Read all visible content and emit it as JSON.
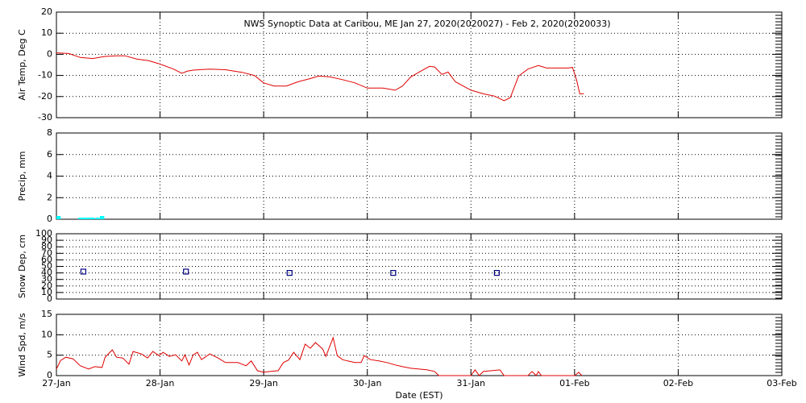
{
  "chart_data": [
    {
      "type": "line",
      "title": "NWS Synoptic Data at Caribou, ME   Jan 27, 2020(2020027) - Feb  2, 2020(2020033)",
      "ylabel": "Air Temp, Deg C",
      "xlim": [
        0,
        7
      ],
      "xticks": [
        0,
        1,
        2,
        3,
        4,
        5,
        6,
        7
      ],
      "ylim": [
        -30,
        20
      ],
      "yticks": [
        -30,
        -20,
        -10,
        0,
        10,
        20
      ],
      "grid": true,
      "series": [
        {
          "name": "Air Temp",
          "color": "#e00000",
          "x": [
            0,
            0.12,
            0.23,
            0.35,
            0.47,
            0.58,
            0.66,
            0.78,
            0.89,
            1.0,
            1.13,
            1.21,
            1.26,
            1.32,
            1.48,
            1.63,
            1.79,
            1.91,
            2.0,
            2.1,
            2.22,
            2.33,
            2.45,
            2.53,
            2.64,
            2.76,
            2.88,
            3.0,
            3.15,
            3.27,
            3.34,
            3.42,
            3.5,
            3.6,
            3.65,
            3.72,
            3.78,
            3.85,
            4.0,
            4.12,
            4.23,
            4.32,
            4.38,
            4.46,
            4.55,
            4.65,
            4.73,
            4.94,
            4.98,
            5.02,
            5.05,
            5.09
          ],
          "values": [
            0.7,
            0.4,
            -1.5,
            -2,
            -1,
            -0.7,
            -0.7,
            -2.3,
            -3,
            -4.6,
            -7,
            -9,
            -8,
            -7.5,
            -7,
            -7.3,
            -8.5,
            -10,
            -13.5,
            -15,
            -15,
            -13,
            -11.5,
            -10.3,
            -10.7,
            -12,
            -13.5,
            -16,
            -16,
            -17,
            -15,
            -10.7,
            -8.4,
            -5.7,
            -6,
            -9.5,
            -8.4,
            -13,
            -17,
            -18.7,
            -19.8,
            -22,
            -20.5,
            -10.3,
            -7,
            -5.3,
            -6.5,
            -6.5,
            -6.2,
            -12.2,
            -18.7,
            -18.7
          ]
        }
      ]
    },
    {
      "type": "bar",
      "ylabel": "Precip, mm",
      "xlim": [
        0,
        7
      ],
      "xticks": [
        0,
        1,
        2,
        3,
        4,
        5,
        6,
        7
      ],
      "ylim": [
        0,
        8
      ],
      "yticks": [
        0,
        2,
        4,
        6,
        8
      ],
      "grid": true,
      "series": [
        {
          "name": "Precip",
          "color": "#00ffff",
          "x": [
            0,
            0.21,
            0.25,
            0.29,
            0.33,
            0.38,
            0.42
          ],
          "values": [
            0.3,
            0.15,
            0.15,
            0.15,
            0.15,
            0.15,
            0.3
          ]
        }
      ]
    },
    {
      "type": "scatter",
      "ylabel": "Snow Dep, cm",
      "xlim": [
        0,
        7
      ],
      "xticks": [
        0,
        1,
        2,
        3,
        4,
        5,
        6,
        7
      ],
      "ylim": [
        0,
        100
      ],
      "yticks": [
        0,
        10,
        20,
        30,
        40,
        50,
        60,
        70,
        80,
        90,
        100
      ],
      "grid": true,
      "series": [
        {
          "name": "Snow Depth",
          "color": "#000080",
          "x": [
            0.26,
            1.25,
            2.25,
            3.25,
            4.25
          ],
          "values": [
            42,
            42,
            40,
            40,
            40
          ]
        }
      ]
    },
    {
      "type": "line",
      "ylabel": "Wind Spd, m/s",
      "xlabel": "Date (EST)",
      "xlim": [
        0,
        7
      ],
      "xticks": [
        {
          "value": 0,
          "label": "27-Jan"
        },
        {
          "value": 1,
          "label": "28-Jan"
        },
        {
          "value": 2,
          "label": "29-Jan"
        },
        {
          "value": 3,
          "label": "30-Jan"
        },
        {
          "value": 4,
          "label": "31-Jan"
        },
        {
          "value": 5,
          "label": "01-Feb"
        },
        {
          "value": 6,
          "label": "02-Feb"
        },
        {
          "value": 7,
          "label": "03-Feb"
        }
      ],
      "ylim": [
        0,
        15
      ],
      "yticks": [
        0,
        5,
        10,
        15
      ],
      "grid": true,
      "series": [
        {
          "name": "Wind Speed",
          "color": "#e00000",
          "x": [
            0,
            0.04,
            0.09,
            0.16,
            0.23,
            0.31,
            0.37,
            0.44,
            0.47,
            0.54,
            0.58,
            0.64,
            0.7,
            0.74,
            0.82,
            0.88,
            0.93,
            0.99,
            1.03,
            1.09,
            1.15,
            1.21,
            1.24,
            1.28,
            1.32,
            1.36,
            1.4,
            1.48,
            1.56,
            1.63,
            1.75,
            1.83,
            1.88,
            1.94,
            2.0,
            2.06,
            2.14,
            2.19,
            2.24,
            2.29,
            2.35,
            2.4,
            2.45,
            2.5,
            2.57,
            2.6,
            2.67,
            2.71,
            2.76,
            2.81,
            2.88,
            2.94,
            2.97,
            3.03,
            3.11,
            3.19,
            3.27,
            3.34,
            3.42,
            3.5,
            3.58,
            3.65,
            3.69,
            4.0,
            4.04,
            4.08,
            4.12,
            4.2,
            4.28,
            4.32,
            4.55,
            4.59,
            4.63,
            4.65,
            4.68,
            5.0,
            5.04,
            5.07
          ],
          "values": [
            1.6,
            3.7,
            4.5,
            4.1,
            2.4,
            1.6,
            2.2,
            2.0,
            4.5,
            6.3,
            4.5,
            4.3,
            2.8,
            5.9,
            5.3,
            4.3,
            5.9,
            4.9,
            5.7,
            4.7,
            5.1,
            3.6,
            5.1,
            2.6,
            5.1,
            5.7,
            3.9,
            5.3,
            4.3,
            3.2,
            3.2,
            2.4,
            3.6,
            1.2,
            0.8,
            1.0,
            1.2,
            3.2,
            3.8,
            5.7,
            3.9,
            7.7,
            6.7,
            8.1,
            6.5,
            4.7,
            9.3,
            4.9,
            3.9,
            3.6,
            3.2,
            3.2,
            4.9,
            3.9,
            3.6,
            3.2,
            2.6,
            2.2,
            1.8,
            1.6,
            1.4,
            1.0,
            0,
            0,
            1.4,
            0,
            1.0,
            1.2,
            1.4,
            0,
            0,
            1.0,
            0,
            1.0,
            0,
            0,
            0.8,
            0
          ]
        }
      ]
    }
  ]
}
